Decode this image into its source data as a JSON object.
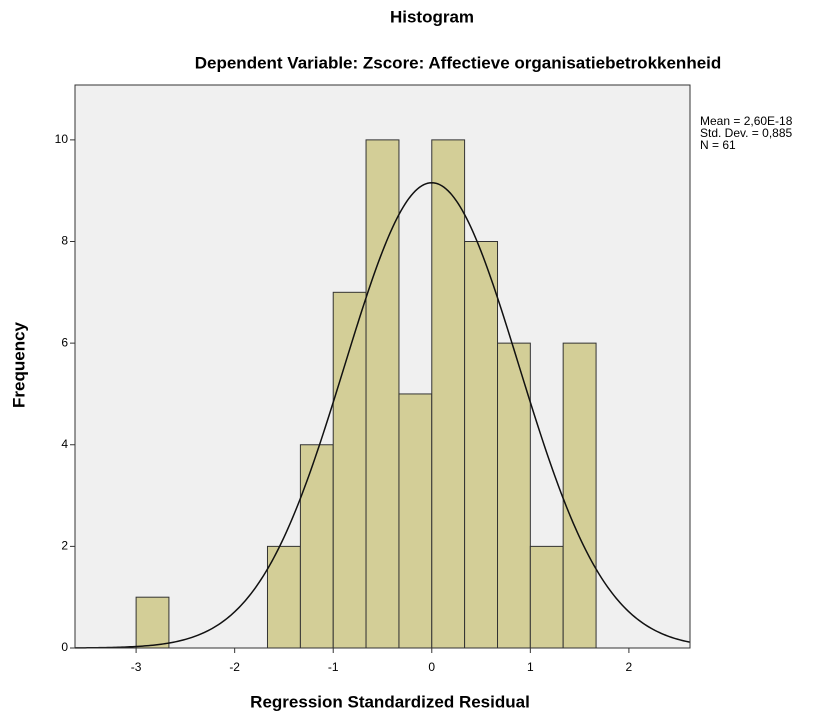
{
  "chart_data": {
    "type": "histogram",
    "title": "Histogram",
    "subtitle": "Dependent Variable: Zscore:  Affectieve organisatiebetrokkenheid",
    "x_label": "Regression Standardized Residual",
    "y_label": "Frequency",
    "bins": [
      -3,
      -2.667,
      -2.333,
      -2,
      -1.667,
      -1.333,
      -1,
      -0.667,
      -0.333,
      0,
      0.333,
      0.667,
      1,
      1.333,
      1.667
    ],
    "counts": [
      1,
      0,
      0,
      0,
      2,
      4,
      7,
      10,
      5,
      10,
      8,
      6,
      2,
      6
    ],
    "color": "#d3ce97",
    "xlim": [
      -3.62,
      2.62
    ],
    "xticks": [
      -3,
      -2,
      -1,
      0,
      1,
      2
    ],
    "ylim": [
      0,
      11.08
    ],
    "yticks": [
      0,
      2,
      4,
      6,
      8,
      10
    ],
    "stats": [
      {
        "value": 2.6e-18,
        "label": "Mean = 2,60E-18"
      },
      {
        "value": 0.885,
        "label": "Std. Dev. = 0,885"
      },
      {
        "value": 61,
        "label": "N = 61"
      }
    ],
    "normal_curve": true
  }
}
